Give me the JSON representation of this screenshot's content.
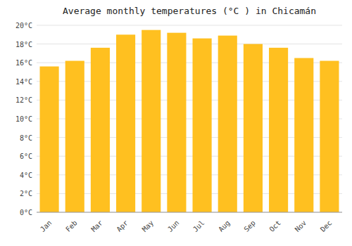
{
  "chart_data": {
    "type": "bar",
    "title": "Average monthly temperatures (°C ) in Chicamán",
    "categories": [
      "Jan",
      "Feb",
      "Mar",
      "Apr",
      "May",
      "Jun",
      "Jul",
      "Aug",
      "Sep",
      "Oct",
      "Nov",
      "Dec"
    ],
    "values": [
      15.6,
      16.2,
      17.6,
      19.0,
      19.5,
      19.2,
      18.6,
      18.9,
      18.0,
      17.6,
      16.5,
      16.2
    ],
    "color": "#FFC020",
    "ylim": [
      0,
      20
    ],
    "yticks": [
      {
        "value": 0,
        "label": "0°C"
      },
      {
        "value": 2,
        "label": "2°C"
      },
      {
        "value": 4,
        "label": "4°C"
      },
      {
        "value": 6,
        "label": "6°C"
      },
      {
        "value": 8,
        "label": "8°C"
      },
      {
        "value": 10,
        "label": "10°C"
      },
      {
        "value": 12,
        "label": "12°C"
      },
      {
        "value": 14,
        "label": "14°C"
      },
      {
        "value": 16,
        "label": "16°C"
      },
      {
        "value": 18,
        "label": "18°C"
      },
      {
        "value": 20,
        "label": "20°C"
      }
    ],
    "grid": true
  }
}
